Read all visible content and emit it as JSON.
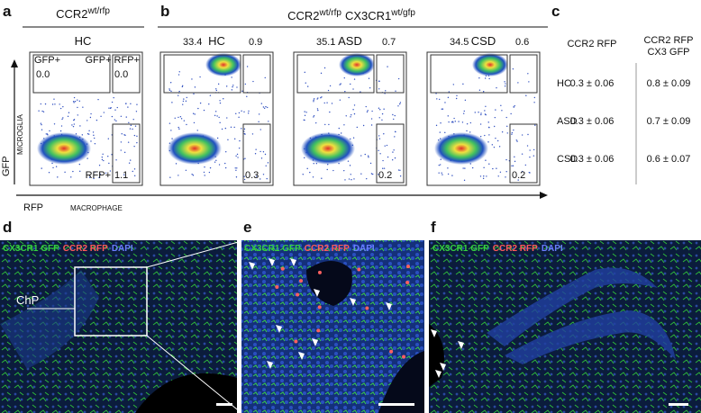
{
  "panel_a": {
    "letter": "a",
    "genotype": "CCR2",
    "genotype_sup": "wt/rfp",
    "condition": "HC",
    "gate_gfp": "GFP+",
    "gate_gfp_rfp": "GFP+ RFP+",
    "gate_rfp": "RFP+",
    "values": [
      "0.0",
      "0.0",
      "1.1"
    ]
  },
  "panel_b": {
    "letter": "b",
    "genotype_1": "CCR2",
    "genotype_1_sup": "wt/rfp",
    "genotype_2": "CX3CR1",
    "genotype_2_sup": "wt/gfp",
    "plots": [
      {
        "condition": "HC",
        "values": [
          "33.4",
          "0.9",
          "0.3"
        ]
      },
      {
        "condition": "ASD",
        "values": [
          "35.1",
          "0.7",
          "0.2"
        ]
      },
      {
        "condition": "CSD",
        "values": [
          "34.5",
          "0.6",
          "0.2"
        ]
      }
    ]
  },
  "axes": {
    "y": "GFP",
    "y_sub": "MICROGLIA",
    "x": "RFP",
    "x_sub": "MACROPHAGE"
  },
  "panel_c": {
    "letter": "c",
    "columns": [
      [
        "CCR2 RFP"
      ],
      [
        "CCR2 RFP",
        "CX3 GFP"
      ]
    ],
    "rows": [
      {
        "label": "HC",
        "cells": [
          "0.3 ± 0.06",
          "0.8 ± 0.09"
        ]
      },
      {
        "label": "ASD",
        "cells": [
          "0.3 ± 0.06",
          "0.7 ± 0.09"
        ]
      },
      {
        "label": "CSD",
        "cells": [
          "0.3 ± 0.06",
          "0.6 ± 0.07"
        ]
      }
    ]
  },
  "panel_d": {
    "letter": "d",
    "stains": [
      "CX3CR1 GFP",
      "CCR2 RFP",
      "DAPI"
    ],
    "region": "ChP"
  },
  "panel_e": {
    "letter": "e",
    "stains": [
      "CX3CR1 GFP",
      "CCR2 RFP",
      "DAPI"
    ]
  },
  "panel_f": {
    "letter": "f",
    "stains": [
      "CX3CR1 GFP",
      "CCR2 RFP",
      "DAPI"
    ]
  }
}
